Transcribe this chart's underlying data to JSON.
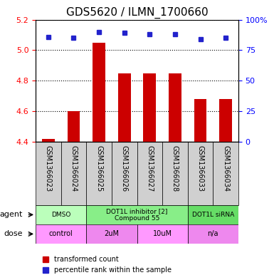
{
  "title": "GDS5620 / ILMN_1700660",
  "samples": [
    "GSM1366023",
    "GSM1366024",
    "GSM1366025",
    "GSM1366026",
    "GSM1366027",
    "GSM1366028",
    "GSM1366033",
    "GSM1366034"
  ],
  "bar_values": [
    4.42,
    4.6,
    5.05,
    4.85,
    4.85,
    4.85,
    4.68,
    4.68
  ],
  "percentile_values": [
    86,
    85,
    90,
    89,
    88,
    88,
    84,
    85
  ],
  "ylim": [
    4.4,
    5.2
  ],
  "yticks_left": [
    4.4,
    4.6,
    4.8,
    5.0,
    5.2
  ],
  "yticks_right": [
    0,
    25,
    50,
    75,
    100
  ],
  "bar_color": "#cc0000",
  "dot_color": "#2222cc",
  "bar_width": 0.5,
  "agent_groups": [
    {
      "label": "DMSO",
      "start": 0,
      "end": 2,
      "color": "#aaffaa"
    },
    {
      "label": "DOT1L inhibitor [2]\nCompound 55",
      "start": 2,
      "end": 6,
      "color": "#88ee88"
    },
    {
      "label": "DOT1L siRNA",
      "start": 6,
      "end": 8,
      "color": "#88dd88"
    }
  ],
  "dose_groups": [
    {
      "label": "control",
      "start": 0,
      "end": 2,
      "color": "#ff88ff"
    },
    {
      "label": "2uM",
      "start": 2,
      "end": 4,
      "color": "#ee88ee"
    },
    {
      "label": "10uM",
      "start": 4,
      "end": 6,
      "color": "#ff88ff"
    },
    {
      "label": "n/a",
      "start": 6,
      "end": 8,
      "color": "#ee88ee"
    }
  ],
  "legend_bar_label": "transformed count",
  "legend_dot_label": "percentile rank within the sample",
  "xlabel_rotation": -90,
  "grid_linestyle": "dotted"
}
